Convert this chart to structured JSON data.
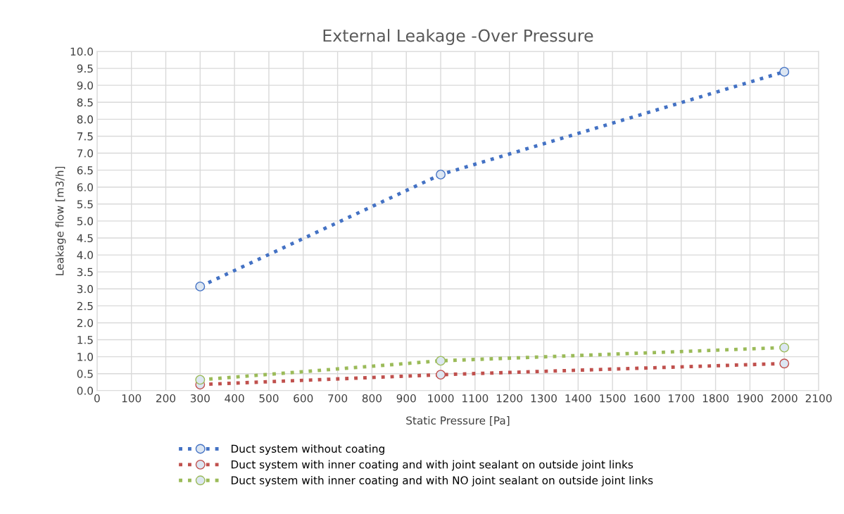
{
  "chart_data": {
    "type": "line",
    "title": "External Leakage -Over Pressure",
    "xlabel": "Static Pressure [Pa]",
    "ylabel": "Leakage flow [m3/h]",
    "x": [
      300,
      1000,
      2000
    ],
    "series": [
      {
        "name": "Duct system without coating",
        "color": "#4472c4",
        "values": [
          3.07,
          6.37,
          9.4
        ]
      },
      {
        "name": "Duct system with inner coating and with joint sealant on outside joint links",
        "color": "#c0504d",
        "values": [
          0.18,
          0.47,
          0.8
        ]
      },
      {
        "name": "Duct system with inner coating and with NO joint sealant on outside joint links",
        "color": "#9bbb59",
        "values": [
          0.32,
          0.88,
          1.27
        ]
      }
    ],
    "xlim": [
      0,
      2100
    ],
    "xticks": [
      0,
      100,
      200,
      300,
      400,
      500,
      600,
      700,
      800,
      900,
      1000,
      1100,
      1200,
      1300,
      1400,
      1500,
      1600,
      1700,
      1800,
      1900,
      2000,
      2100
    ],
    "ylim": [
      0,
      10
    ],
    "yticks": [
      {
        "value": 0,
        "label": "0.0"
      },
      {
        "value": 0.5,
        "label": "0.5"
      },
      {
        "value": 1,
        "label": "1.0"
      },
      {
        "value": 1.5,
        "label": "1.5"
      },
      {
        "value": 2,
        "label": "2.0"
      },
      {
        "value": 2.5,
        "label": "2.5"
      },
      {
        "value": 3,
        "label": "3.0"
      },
      {
        "value": 3.5,
        "label": "3.5"
      },
      {
        "value": 4,
        "label": "4.0"
      },
      {
        "value": 4.5,
        "label": "4.5"
      },
      {
        "value": 5,
        "label": "5.0"
      },
      {
        "value": 5.5,
        "label": "5.5"
      },
      {
        "value": 6,
        "label": "6.0"
      },
      {
        "value": 6.5,
        "label": "6.5"
      },
      {
        "value": 7,
        "label": "7.0"
      },
      {
        "value": 7.5,
        "label": "7.5"
      },
      {
        "value": 8,
        "label": "8.0"
      },
      {
        "value": 8.5,
        "label": "8.5"
      },
      {
        "value": 9,
        "label": "9.0"
      },
      {
        "value": 9.5,
        "label": "9.5"
      },
      {
        "value": 10,
        "label": "10.0"
      }
    ],
    "grid": true,
    "legend": "bottom",
    "marker": "circle",
    "line_style": "dotted"
  }
}
